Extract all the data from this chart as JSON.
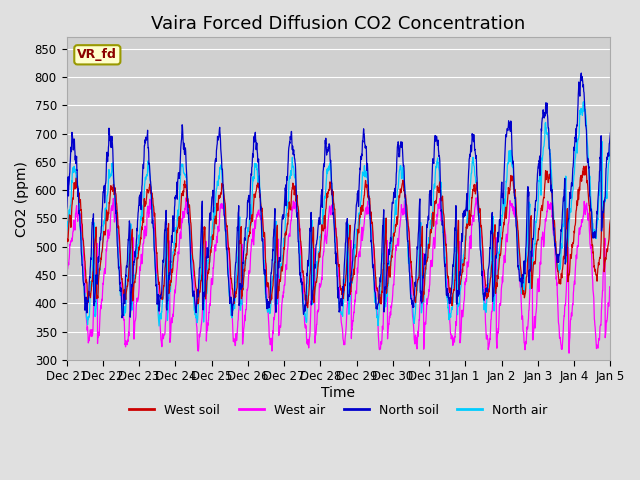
{
  "title": "Vaira Forced Diffusion CO2 Concentration",
  "xlabel": "Time",
  "ylabel": "CO2 (ppm)",
  "ylim": [
    300,
    870
  ],
  "yticks": [
    300,
    350,
    400,
    450,
    500,
    550,
    600,
    650,
    700,
    750,
    800,
    850
  ],
  "colors": {
    "west_soil": "#cc0000",
    "west_air": "#ff00ff",
    "north_soil": "#0000cc",
    "north_air": "#00ccff"
  },
  "legend_labels": [
    "West soil",
    "West air",
    "North soil",
    "North air"
  ],
  "annotation_text": "VR_fd",
  "background_color": "#e0e0e0",
  "plot_bg_color": "#d0d0d0",
  "grid_color": "#ffffff",
  "n_points": 2000,
  "x_start": 0,
  "x_end": 15,
  "xtick_positions": [
    0,
    1,
    2,
    3,
    4,
    5,
    6,
    7,
    8,
    9,
    10,
    11,
    12,
    13,
    14,
    15
  ],
  "xtick_labels": [
    "Dec 21",
    "Dec 22",
    "Dec 23",
    "Dec 24",
    "Dec 25",
    "Dec 26",
    "Dec 27",
    "Dec 28",
    "Dec 29",
    "Dec 30",
    "Dec 31",
    "Jan 1",
    "Jan 2",
    "Jan 3",
    "Jan 4",
    "Jan 5"
  ],
  "title_fontsize": 13,
  "label_fontsize": 10,
  "tick_fontsize": 8.5,
  "legend_fontsize": 9,
  "figwidth": 6.4,
  "figheight": 4.8,
  "dpi": 100
}
